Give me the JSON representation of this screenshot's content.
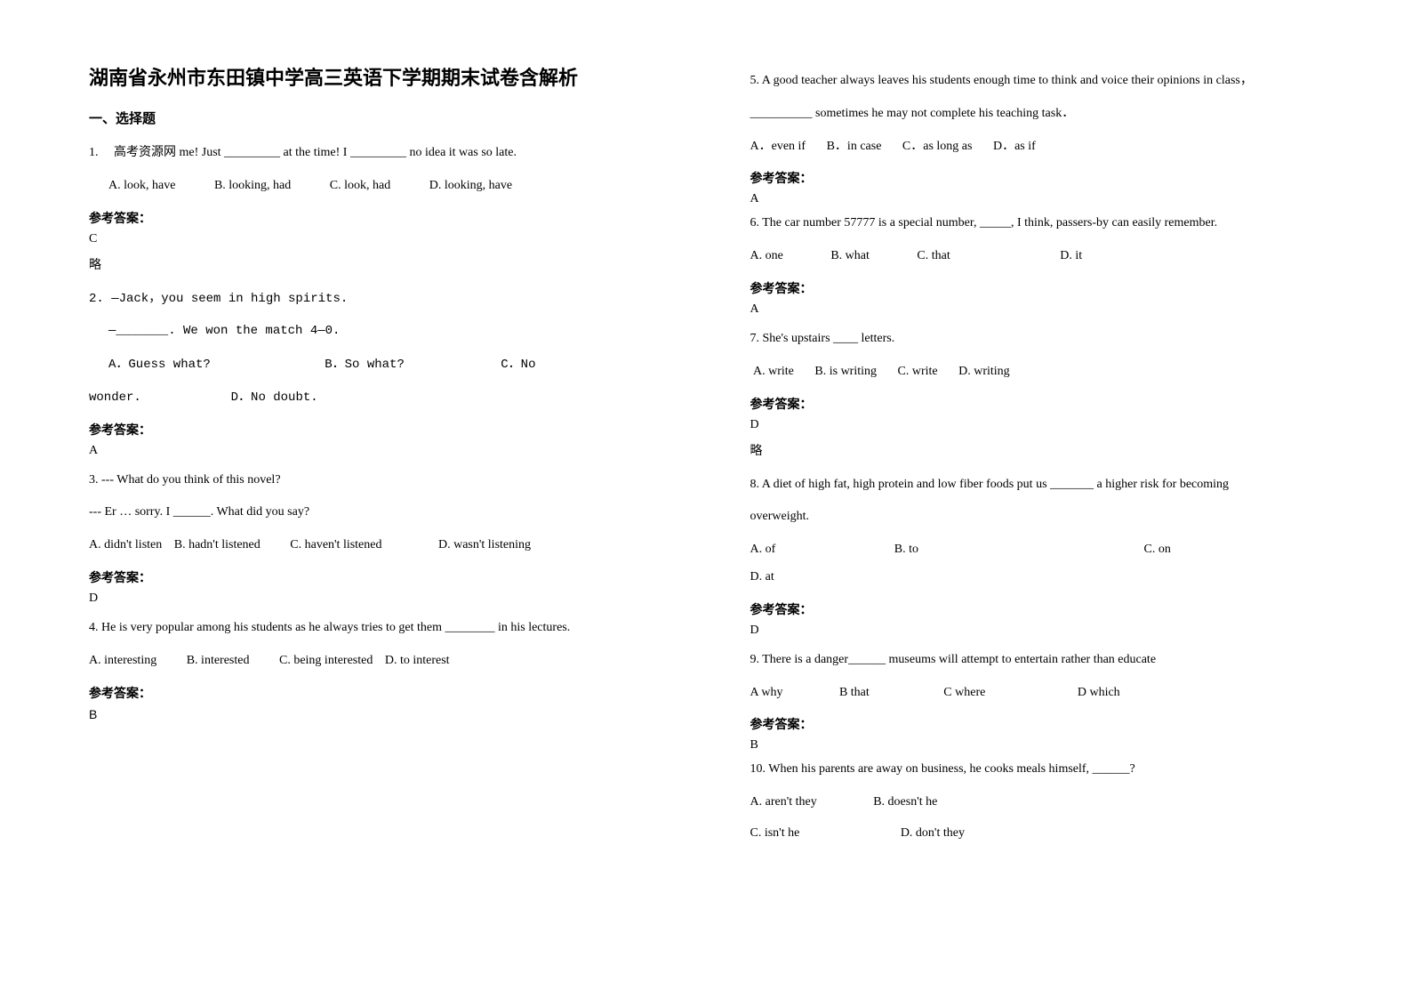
{
  "page": {
    "background_color": "#ffffff",
    "text_color": "#000000",
    "font_family_cn": "SimSun",
    "font_family_en": "Times New Roman",
    "title_fontsize": 22,
    "body_fontsize": 14
  },
  "title": "湖南省永州市东田镇中学高三英语下学期期末试卷含解析",
  "section1_heading": "一、选择题",
  "q1": {
    "num": "1.",
    "prefix": "高考资源网 me! Just _________ at the time! I _________ no idea it was so late.",
    "optA": "A. look, have",
    "optB": "B. looking, had",
    "optC": "C. look, had",
    "optD": "D. looking, have",
    "ans_label": "参考答案：",
    "ans": "C",
    "lue": "略"
  },
  "q2": {
    "line1": "2. —Jack，you seem in high spirits.",
    "line2": "—_______. We won the match 4—0.",
    "optA": "A．Guess what?",
    "optB": "B．So what?",
    "optC": "C．No",
    "line3": "wonder.",
    "optD": "D．No doubt.",
    "ans_label": "参考答案：",
    "ans": "A"
  },
  "q3": {
    "line1": "3. --- What do you think of this novel?",
    "line2": "--- Er … sorry. I ______. What did you say?",
    "optA": "A. didn't listen",
    "optB": "B. hadn't listened",
    "optC": "C. haven't listened",
    "optD": "D. wasn't listening",
    "ans_label": "参考答案：",
    "ans": "D"
  },
  "q4": {
    "line1": "4. He is very popular among his students as he always tries to get them ________ in his lectures.",
    "optA": "A. interesting",
    "optB": "B. interested",
    "optC": "C. being interested",
    "optD": "D. to interest",
    "ans_label": "参考答案：",
    "ans": "B"
  },
  "q5": {
    "line1": "5. A good teacher always leaves his students enough time to think and voice their opinions in class，",
    "line2": "__________ sometimes he may not complete his teaching task．",
    "optA": "A．even if",
    "optB": "B．in case",
    "optC": "C．as long as",
    "optD": "D．as if",
    "ans_label": "参考答案：",
    "ans": "A"
  },
  "q6": {
    "line1": "6.  The car number 57777 is a special number, _____, I think, passers-by can easily remember.",
    "optA": "A. one",
    "optB": "B. what",
    "optC": "C. that",
    "optD": "D. it",
    "ans_label": "参考答案：",
    "ans": "A"
  },
  "q7": {
    "line1": "7. She's upstairs ____ letters.",
    "optA": "A. write",
    "optB": "B. is writing",
    "optC": "C. write",
    "optD": "D. writing",
    "ans_label": "参考答案：",
    "ans": "D",
    "lue": "略"
  },
  "q8": {
    "line1": "8. A diet of high fat, high protein and low fiber foods put us _______ a higher risk for becoming",
    "line2": "overweight.",
    "optA": "A. of",
    "optB": "B. to",
    "optC": "C. on",
    "optD": "D. at",
    "ans_label": "参考答案：",
    "ans": "D"
  },
  "q9": {
    "line1": "9. There is a danger______ museums will attempt to entertain rather than educate",
    "optA": "A why",
    "optB": "B that",
    "optC": "C where",
    "optD": "D which",
    "ans_label": "参考答案：",
    "ans": "B"
  },
  "q10": {
    "line1": "10. When his parents are away on business, he cooks meals himself, ______?",
    "optA": "A. aren't they",
    "optB": "B. doesn't he",
    "optC": "C. isn't he",
    "optD": "D. don't they"
  }
}
